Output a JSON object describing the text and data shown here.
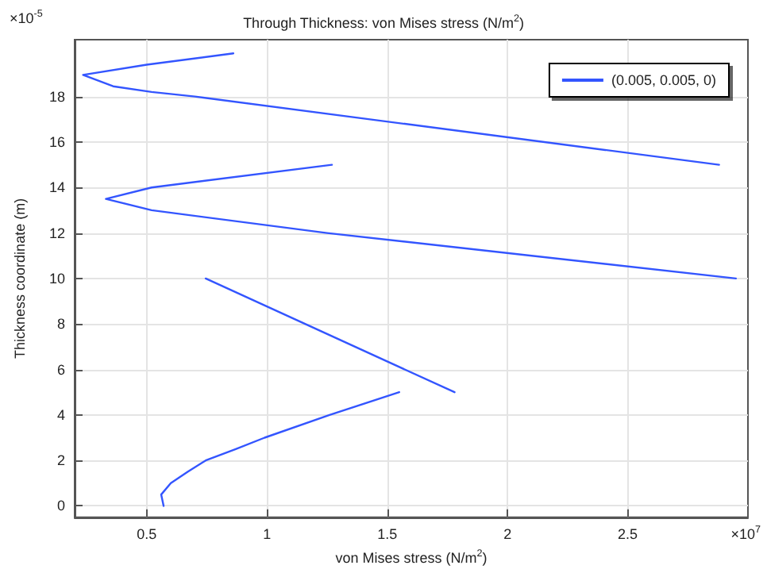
{
  "chart_data": {
    "type": "line",
    "title": "Through Thickness: von Mises stress (N/m$^{2}$)",
    "xlabel": "von Mises stress (N/m$^{2}$)",
    "ylabel": "Thickness coordinate (m)",
    "annotations": [
      "×10$^{-5}$",
      "×10$^{7}$"
    ],
    "x": [
      0.57,
      0.56,
      0.6,
      0.67,
      0.745,
      0.87,
      0.99,
      1.26,
      1.55,
      null,
      1.78,
      0.745,
      null,
      2.95,
      1.25,
      0.52,
      0.33,
      0.52,
      1.27,
      null,
      2.88,
      0.7,
      0.52,
      0.36,
      0.235,
      0.5,
      0.86
    ],
    "series": [
      {
        "name": "(0.005, 0.005, 0)",
        "color": "#3355ff",
        "values": [
          0,
          0.5,
          1,
          1.5,
          2,
          2.5,
          3,
          4,
          5,
          null,
          5,
          10,
          null,
          10,
          12,
          13,
          13.5,
          14,
          15,
          null,
          15,
          18,
          18.2,
          18.45,
          18.95,
          19.4,
          19.9
        ]
      }
    ],
    "xlim": [
      0.2,
      3.0
    ],
    "ylim": [
      -0.5,
      20.5
    ],
    "xticks": [
      0.5,
      1,
      1.5,
      2,
      2.5
    ],
    "yticks": [
      0,
      2,
      4,
      6,
      8,
      10,
      12,
      14,
      16,
      18
    ],
    "grid": true,
    "legend": "top right",
    "marker": "none",
    "line_style": "solid"
  }
}
